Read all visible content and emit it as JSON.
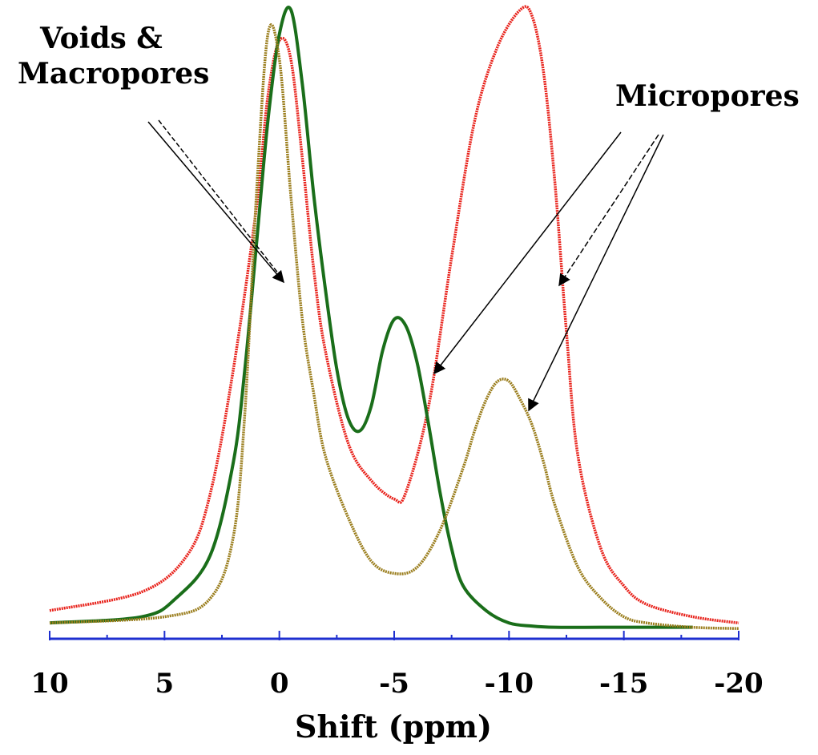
{
  "chart_data": {
    "type": "line",
    "title": "",
    "xlabel": "Shift (ppm)",
    "ylabel": "",
    "xlim": [
      10,
      -20
    ],
    "ylim": [
      0,
      1.0
    ],
    "x_reversed": true,
    "grid": false,
    "legend": "none",
    "xticks": [
      {
        "value": 10,
        "label": "10"
      },
      {
        "value": 5,
        "label": "5"
      },
      {
        "value": 0,
        "label": "0"
      },
      {
        "value": -5,
        "label": "-5"
      },
      {
        "value": -10,
        "label": "-10"
      },
      {
        "value": -15,
        "label": "-15"
      },
      {
        "value": -20,
        "label": "-20"
      }
    ],
    "axis_color": "#1e2fd0",
    "series": [
      {
        "color": "#e8221b",
        "x": [
          10,
          6,
          4,
          3,
          2,
          1,
          0.5,
          0,
          -0.5,
          -1,
          -1.5,
          -2,
          -3,
          -4,
          -5,
          -5.5,
          -6.5,
          -7.5,
          -8.5,
          -9.5,
          -10.5,
          -11,
          -11.5,
          -12,
          -12.5,
          -13,
          -14,
          -15,
          -16,
          -18,
          -20
        ],
        "y": [
          0.03,
          0.06,
          0.12,
          0.22,
          0.42,
          0.68,
          0.86,
          0.95,
          0.92,
          0.76,
          0.58,
          0.45,
          0.3,
          0.24,
          0.21,
          0.22,
          0.36,
          0.6,
          0.82,
          0.94,
          1.0,
          0.99,
          0.9,
          0.72,
          0.48,
          0.28,
          0.13,
          0.07,
          0.04,
          0.02,
          0.01
        ]
      },
      {
        "color": "#1a6e1a",
        "x": [
          10,
          6,
          4.5,
          3,
          2,
          1.5,
          1,
          0.5,
          0,
          -0.5,
          -1,
          -1.5,
          -2,
          -2.5,
          -3,
          -3.5,
          -4,
          -4.5,
          -5,
          -5.5,
          -6,
          -6.5,
          -7,
          -7.5,
          -8,
          -9,
          -10,
          -11,
          -12,
          -14,
          -16,
          -18
        ],
        "y": [
          0.01,
          0.02,
          0.05,
          0.12,
          0.27,
          0.42,
          0.62,
          0.82,
          0.96,
          1.0,
          0.88,
          0.7,
          0.55,
          0.42,
          0.34,
          0.32,
          0.36,
          0.45,
          0.5,
          0.49,
          0.43,
          0.33,
          0.22,
          0.13,
          0.07,
          0.03,
          0.01,
          0.005,
          0.003,
          0.003,
          0.003,
          0.003
        ]
      },
      {
        "color": "#9a7d1c",
        "x": [
          10,
          5,
          3,
          2,
          1.5,
          1,
          0.5,
          0,
          -0.5,
          -1,
          -1.5,
          -2,
          -3,
          -4,
          -5,
          -6,
          -7,
          -8,
          -8.5,
          -9,
          -9.5,
          -10,
          -10.5,
          -11,
          -11.5,
          -12,
          -13,
          -14,
          -15,
          -16,
          -18,
          -20
        ],
        "y": [
          0.01,
          0.02,
          0.05,
          0.15,
          0.35,
          0.7,
          0.96,
          0.92,
          0.7,
          0.5,
          0.38,
          0.28,
          0.18,
          0.11,
          0.09,
          0.1,
          0.16,
          0.26,
          0.32,
          0.37,
          0.4,
          0.4,
          0.37,
          0.33,
          0.27,
          0.2,
          0.1,
          0.05,
          0.02,
          0.01,
          0.003,
          0.001
        ]
      }
    ],
    "annotations": [
      {
        "lines": [
          "Voids &",
          "Macropores"
        ]
      },
      {
        "lines": [
          "Micropores"
        ]
      }
    ]
  }
}
